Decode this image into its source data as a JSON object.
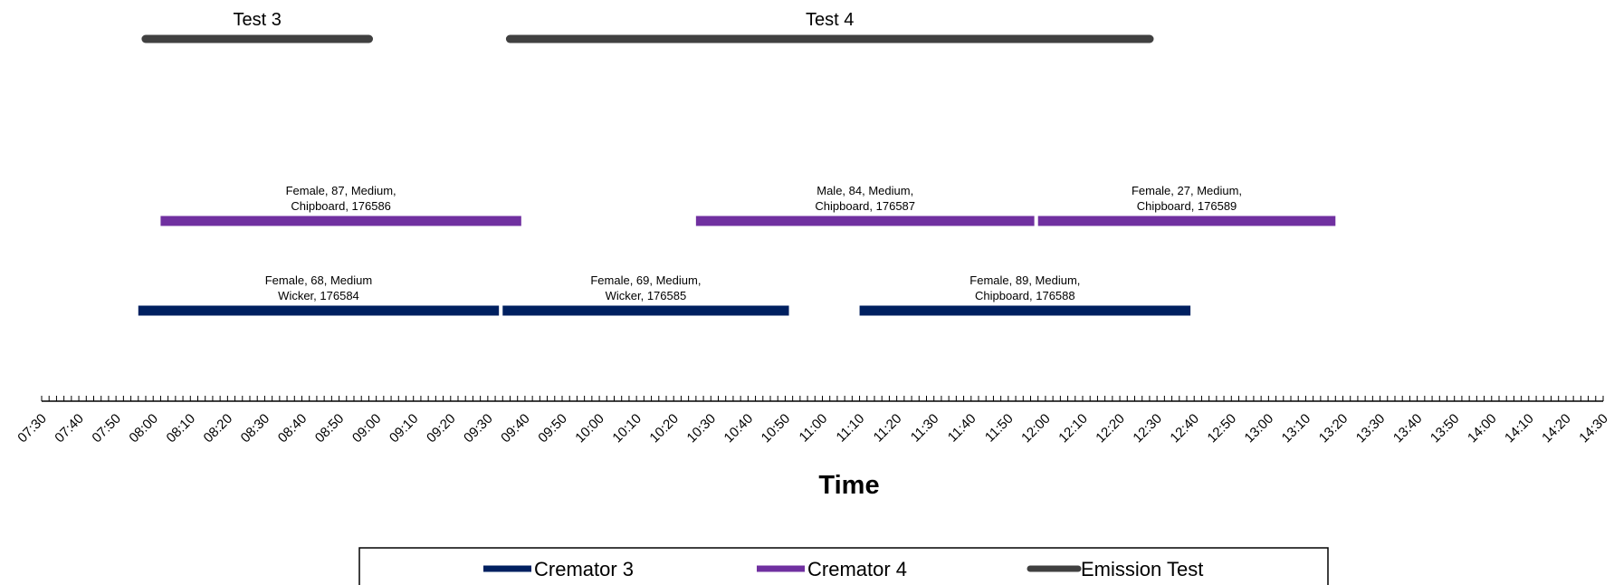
{
  "chart_data": {
    "type": "timeline",
    "xlabel": "Time",
    "x_range": [
      "07:30",
      "14:30"
    ],
    "tick_labels": [
      "07:30",
      "07:40",
      "07:50",
      "08:00",
      "08:10",
      "08:20",
      "08:30",
      "08:40",
      "08:50",
      "09:00",
      "09:10",
      "09:20",
      "09:30",
      "09:40",
      "09:50",
      "10:00",
      "10:10",
      "10:20",
      "10:30",
      "10:40",
      "10:50",
      "11:00",
      "11:10",
      "11:20",
      "11:30",
      "11:40",
      "11:50",
      "12:00",
      "12:10",
      "12:20",
      "12:30",
      "12:40",
      "12:50",
      "13:00",
      "13:10",
      "13:20",
      "13:30",
      "13:40",
      "13:50",
      "14:00",
      "14:10",
      "14:20",
      "14:30"
    ],
    "minor_tick_interval_min": 2,
    "legend_position": "bottom",
    "series": [
      {
        "name": "Cremator 3",
        "color": "#002060",
        "row": "lower",
        "intervals": [
          {
            "start": "07:56",
            "end": "09:33",
            "label": [
              "Female, 68, Medium",
              "Wicker, 176584"
            ]
          },
          {
            "start": "09:34",
            "end": "10:51",
            "label": [
              "Female, 69, Medium,",
              "Wicker, 176585"
            ]
          },
          {
            "start": "11:10",
            "end": "12:39",
            "label": [
              "Female, 89, Medium,",
              "Chipboard, 176588"
            ]
          }
        ]
      },
      {
        "name": "Cremator 4",
        "color": "#7030A0",
        "row": "middle",
        "intervals": [
          {
            "start": "08:02",
            "end": "09:39",
            "label": [
              "Female, 87, Medium,",
              "Chipboard, 176586"
            ]
          },
          {
            "start": "10:26",
            "end": "11:57",
            "label": [
              "Male, 84, Medium,",
              "Chipboard, 176587"
            ]
          },
          {
            "start": "11:58",
            "end": "13:18",
            "label": [
              "Female, 27, Medium,",
              "Chipboard, 176589"
            ]
          }
        ]
      },
      {
        "name": "Emission Test",
        "color": "#404040",
        "row": "top",
        "intervals": [
          {
            "start": "07:57",
            "end": "08:59",
            "label": [
              "Test 3"
            ]
          },
          {
            "start": "09:35",
            "end": "12:29",
            "label": [
              "Test 4"
            ]
          }
        ]
      }
    ]
  }
}
